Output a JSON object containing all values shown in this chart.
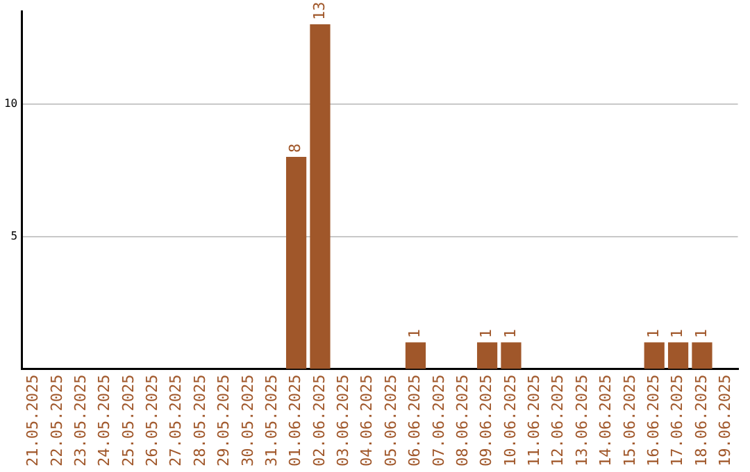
{
  "chart_data": {
    "type": "bar",
    "categories": [
      "21.05.2025",
      "22.05.2025",
      "23.05.2025",
      "24.05.2025",
      "25.05.2025",
      "26.05.2025",
      "27.05.2025",
      "28.05.2025",
      "29.05.2025",
      "30.05.2025",
      "31.05.2025",
      "01.06.2025",
      "02.06.2025",
      "03.06.2025",
      "04.06.2025",
      "05.06.2025",
      "06.06.2025",
      "07.06.2025",
      "08.06.2025",
      "09.06.2025",
      "10.06.2025",
      "11.06.2025",
      "12.06.2025",
      "13.06.2025",
      "14.06.2025",
      "15.06.2025",
      "16.06.2025",
      "17.06.2025",
      "18.06.2025",
      "19.06.2025"
    ],
    "values": [
      0,
      0,
      0,
      0,
      0,
      0,
      0,
      0,
      0,
      0,
      0,
      8,
      13,
      0,
      0,
      0,
      1,
      0,
      0,
      1,
      1,
      0,
      0,
      0,
      0,
      0,
      1,
      1,
      1,
      0
    ],
    "value_labels": [
      null,
      null,
      null,
      null,
      null,
      null,
      null,
      null,
      null,
      null,
      null,
      "8",
      "13",
      null,
      null,
      null,
      "1",
      null,
      null,
      "1",
      "1",
      null,
      null,
      null,
      null,
      null,
      "1",
      "1",
      "1",
      null
    ],
    "color": "#a0572a",
    "ylim": [
      0,
      13.5
    ],
    "yticks": [
      5,
      10
    ],
    "grid": "y",
    "legend": false
  }
}
